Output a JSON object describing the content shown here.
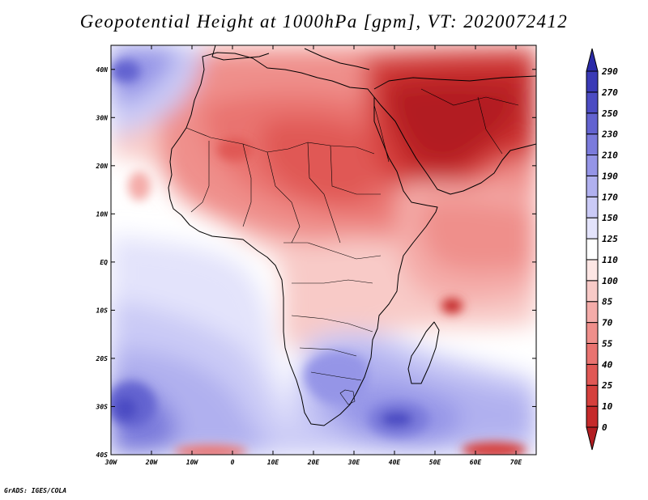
{
  "title": "Geopotential Height at 1000hPa [gpm], VT: 2020072412",
  "credit": "GrADS: IGES/COLA",
  "map": {
    "lon_range": [
      -30,
      75
    ],
    "lat_range": [
      -40,
      45
    ],
    "lon_ticks": [
      {
        "value": -30,
        "label": "30W"
      },
      {
        "value": -20,
        "label": "20W"
      },
      {
        "value": -10,
        "label": "10W"
      },
      {
        "value": 0,
        "label": "0"
      },
      {
        "value": 10,
        "label": "10E"
      },
      {
        "value": 20,
        "label": "20E"
      },
      {
        "value": 30,
        "label": "30E"
      },
      {
        "value": 40,
        "label": "40E"
      },
      {
        "value": 50,
        "label": "50E"
      },
      {
        "value": 60,
        "label": "60E"
      },
      {
        "value": 70,
        "label": "70E"
      }
    ],
    "lat_ticks": [
      {
        "value": 40,
        "label": "40N"
      },
      {
        "value": 30,
        "label": "30N"
      },
      {
        "value": 20,
        "label": "20N"
      },
      {
        "value": 10,
        "label": "10N"
      },
      {
        "value": 0,
        "label": "EQ"
      },
      {
        "value": -10,
        "label": "10S"
      },
      {
        "value": -20,
        "label": "20S"
      },
      {
        "value": -30,
        "label": "30S"
      },
      {
        "value": -40,
        "label": "40S"
      }
    ]
  },
  "colorbar": {
    "levels": [
      0,
      10,
      25,
      40,
      55,
      70,
      85,
      100,
      110,
      125,
      150,
      170,
      190,
      210,
      230,
      250,
      270,
      290
    ],
    "colors": [
      "#b21d22",
      "#c52a2b",
      "#d5403d",
      "#e05855",
      "#e97370",
      "#ef8f8b",
      "#f4aca9",
      "#f8cac7",
      "#fde6e4",
      "#ffffff",
      "#e3e3fb",
      "#cacaf6",
      "#b0b0ef",
      "#9595e7",
      "#7b7bdc",
      "#6363d0",
      "#4c4cc3",
      "#3a3ab6",
      "#2b2ba8"
    ],
    "colors_by_class": "under0, 0-10, 10-25, 25-40, 40-55, 55-70, 70-85, 85-100, 100-110, 110-125, 125-150, 150-170, 170-190, 190-210, 210-230, 230-250, 250-270, 270-290, over290"
  }
}
